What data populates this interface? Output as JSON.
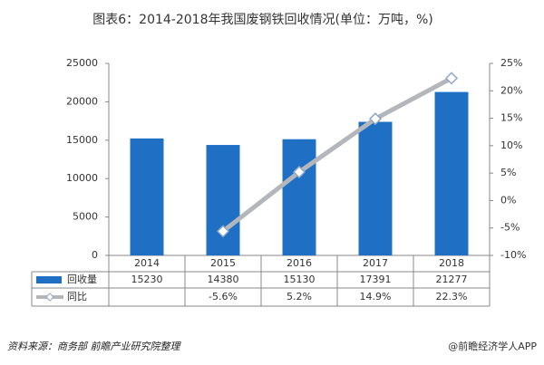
{
  "chart_data": {
    "type": "bar",
    "title": "图表6：2014-2018年我国废钢铁回收情况(单位：万吨，%)",
    "categories": [
      "2014",
      "2015",
      "2016",
      "2017",
      "2018"
    ],
    "series": [
      {
        "name": "回收量",
        "type": "bar",
        "color": "#1f6fc5",
        "values": [
          15230,
          14380,
          15130,
          17391,
          21277
        ]
      },
      {
        "name": "同比",
        "type": "line",
        "axis": "y2",
        "color": "#b3b6ba",
        "values": [
          null,
          -5.6,
          5.2,
          14.9,
          22.3
        ],
        "value_labels": [
          null,
          "-5.6%",
          "5.2%",
          "14.9%",
          "22.3%"
        ]
      }
    ],
    "ylim": [
      0,
      25000
    ],
    "yticks": [
      0,
      5000,
      10000,
      15000,
      20000,
      25000
    ],
    "y2lim": [
      -10,
      25
    ],
    "y2ticks": [
      {
        "value": -10,
        "label": "-10%"
      },
      {
        "value": -5,
        "label": "-5%"
      },
      {
        "value": 0,
        "label": "0%"
      },
      {
        "value": 5,
        "label": "5%"
      },
      {
        "value": 10,
        "label": "10%"
      },
      {
        "value": 15,
        "label": "15%"
      },
      {
        "value": 20,
        "label": "20%"
      },
      {
        "value": 25,
        "label": "25%"
      }
    ],
    "source": "资料来源：商务部 前瞻产业研究院整理",
    "brand": "@前瞻经济学人APP"
  }
}
